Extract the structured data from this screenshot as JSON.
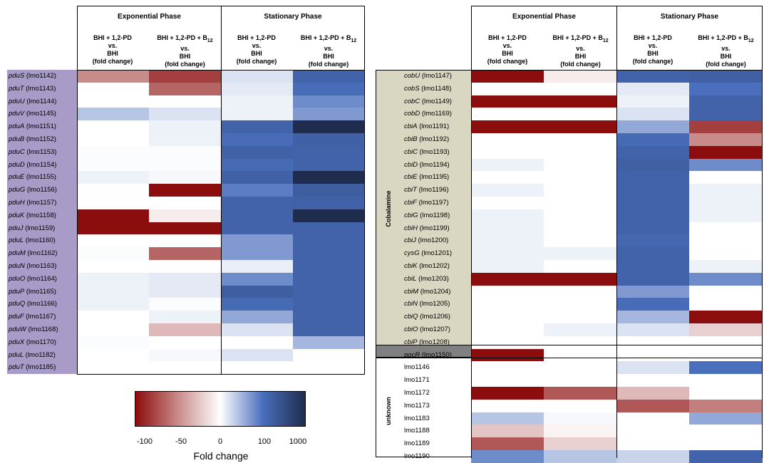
{
  "left_panel": {
    "phases": [
      "Exponential Phase",
      "Stationary Phase"
    ],
    "column_headers": [
      "BHI + 1,2-PD\nvs.\nBHI\n(fold change)",
      "BHI + 1,2-PD + B12\nvs.\nBHI\n(fold change)",
      "BHI + 1,2-PD\nvs.\nBHI\n(fold change)",
      "BHI + 1,2-PD + B12\nvs.\nBHI\n(fold change)"
    ],
    "label_color": "#a99bc7",
    "rows": [
      {
        "gene": "pduS",
        "locus": "(lmo1142)"
      },
      {
        "gene": "pduT",
        "locus": "(lmo1143)"
      },
      {
        "gene": "pduU",
        "locus": "(lmo1144)"
      },
      {
        "gene": "pduV",
        "locus": "(lmo1145)"
      },
      {
        "gene": "pduA",
        "locus": "(lmo1151)"
      },
      {
        "gene": "pduB",
        "locus": "(lmo1152)"
      },
      {
        "gene": "pduC",
        "locus": "(lmo1153)"
      },
      {
        "gene": "pduD",
        "locus": "(lmo1154)"
      },
      {
        "gene": "pduE",
        "locus": "(lmo1155)"
      },
      {
        "gene": "pduG",
        "locus": "(lmo1156)"
      },
      {
        "gene": "pduH",
        "locus": "(lmo1157)"
      },
      {
        "gene": "pduK",
        "locus": "(lmo1158)"
      },
      {
        "gene": "pduJ",
        "locus": "(lmo1159)"
      },
      {
        "gene": "pduL",
        "locus": "(lmo1160)"
      },
      {
        "gene": "pduM",
        "locus": "(lmo1162)"
      },
      {
        "gene": "pduN",
        "locus": "(lmo1163)"
      },
      {
        "gene": "pduO",
        "locus": "(lmo1164)"
      },
      {
        "gene": "pduP",
        "locus": "(lmo1165)"
      },
      {
        "gene": "pduQ",
        "locus": "(lmo1166)"
      },
      {
        "gene": "pduF",
        "locus": "(lmo1167)"
      },
      {
        "gene": "pduW",
        "locus": "(lmo1168)"
      },
      {
        "gene": "pduX",
        "locus": "(lmo1170)"
      },
      {
        "gene": "pduL",
        "locus": "(lmo1182)"
      },
      {
        "gene": "pduT",
        "locus": "(lmo1185)"
      }
    ]
  },
  "right_panel": {
    "phases": [
      "Exponential Phase",
      "Stationary Phase"
    ],
    "column_headers": [
      "BHI + 1,2-PD\nvs.\nBHI\n(fold change)",
      "BHI + 1,2-PD + B12\nvs.\nBHI\n(fold change)",
      "BHI + 1,2-PD\nvs.\nBHI\n(fold change)",
      "BHI + 1,2-PD + B12\nvs.\nBHI\n(fold change)"
    ],
    "groups": [
      {
        "label": "Cobalamine",
        "color": "#d9d7c1"
      },
      {
        "label": "",
        "color": "#808080"
      },
      {
        "label": "unknown",
        "color": "#ffffff"
      }
    ],
    "rows": [
      {
        "gene": "cobU",
        "locus": "(lmo1147)",
        "group": 0
      },
      {
        "gene": "cobS",
        "locus": "(lmo1148)",
        "group": 0
      },
      {
        "gene": "cobC",
        "locus": "(lmo1149)",
        "group": 0
      },
      {
        "gene": "cobD",
        "locus": "(lmo1169)",
        "group": 0
      },
      {
        "gene": "cbiA",
        "locus": "(lmo1191)",
        "group": 0
      },
      {
        "gene": "cbiB",
        "locus": "(lmo1192)",
        "group": 0
      },
      {
        "gene": "cbiC",
        "locus": "(lmo1193)",
        "group": 0
      },
      {
        "gene": "cbiD",
        "locus": "(lmo1194)",
        "group": 0
      },
      {
        "gene": "cbiE",
        "locus": "(lmo1195)",
        "group": 0
      },
      {
        "gene": "cbiT",
        "locus": "(lmo1196)",
        "group": 0
      },
      {
        "gene": "cbiF",
        "locus": "(lmo1197)",
        "group": 0
      },
      {
        "gene": "cbiG",
        "locus": "(lmo1198)",
        "group": 0
      },
      {
        "gene": "cbiH",
        "locus": "(lmo1199)",
        "group": 0
      },
      {
        "gene": "cbiJ",
        "locus": "(lmo1200)",
        "group": 0
      },
      {
        "gene": "cysG",
        "locus": "(lmo1201)",
        "group": 0
      },
      {
        "gene": "cbiK",
        "locus": "(lmo1202)",
        "group": 0
      },
      {
        "gene": "cbiL",
        "locus": "(lmo1203)",
        "group": 0
      },
      {
        "gene": "cbiM",
        "locus": "(lmo1204)",
        "group": 0
      },
      {
        "gene": "cbiN",
        "locus": "(lmo1205)",
        "group": 0
      },
      {
        "gene": "cbiQ",
        "locus": "(lmo1206)",
        "group": 0
      },
      {
        "gene": "cbiO",
        "locus": "(lmo1207)",
        "group": 0
      },
      {
        "gene": "cbiP",
        "locus": "(lmo1208)",
        "group": 0
      },
      {
        "gene": "pocR",
        "locus": "(lmo1150)",
        "group": 1
      },
      {
        "gene": "",
        "locus": "lmo1146",
        "group": 2
      },
      {
        "gene": "",
        "locus": "lmo1171",
        "group": 2
      },
      {
        "gene": "",
        "locus": "lmo1172",
        "group": 2
      },
      {
        "gene": "",
        "locus": "lmo1173",
        "group": 2
      },
      {
        "gene": "",
        "locus": "lmo1183",
        "group": 2
      },
      {
        "gene": "",
        "locus": "lmo1188",
        "group": 2
      },
      {
        "gene": "",
        "locus": "lmo1189",
        "group": 2
      },
      {
        "gene": "",
        "locus": "lmo1190",
        "group": 2
      }
    ]
  },
  "colorbar": {
    "tick_labels": [
      "-100",
      "-50",
      "0",
      "100",
      "1000"
    ],
    "label": "Fold change",
    "colors": [
      "#8b0d0d",
      "#c98a8a",
      "#ffffff",
      "#4a6fbd",
      "#1f2c4d"
    ]
  },
  "chart_data": {
    "type": "heatmap",
    "color_scale": {
      "ticks": [
        -100,
        -50,
        0,
        100,
        1000
      ],
      "label": "Fold change"
    },
    "columns": [
      "Exponential Phase: BHI + 1,2-PD vs. BHI",
      "Exponential Phase: BHI + 1,2-PD + B12 vs. BHI",
      "Stationary Phase: BHI + 1,2-PD vs. BHI",
      "Stationary Phase: BHI + 1,2-PD + B12 vs. BHI"
    ],
    "left_values": [
      [
        -50,
        -80,
        20,
        150
      ],
      [
        0,
        -65,
        15,
        110
      ],
      [
        0,
        0,
        10,
        80
      ],
      [
        40,
        20,
        10,
        70
      ],
      [
        0,
        10,
        150,
        1000
      ],
      [
        0,
        10,
        110,
        160
      ],
      [
        2,
        2,
        160,
        150
      ],
      [
        2,
        2,
        120,
        150
      ],
      [
        10,
        5,
        160,
        1000
      ],
      [
        0,
        -100,
        90,
        180
      ],
      [
        0,
        0,
        150,
        160
      ],
      [
        -100,
        -8,
        150,
        1000
      ],
      [
        -100,
        -100,
        150,
        150
      ],
      [
        0,
        0,
        70,
        150
      ],
      [
        3,
        -65,
        70,
        150
      ],
      [
        0,
        0,
        12,
        150
      ],
      [
        10,
        15,
        80,
        150
      ],
      [
        10,
        15,
        180,
        150
      ],
      [
        10,
        2,
        120,
        150
      ],
      [
        0,
        10,
        60,
        150
      ],
      [
        0,
        -30,
        20,
        150
      ],
      [
        2,
        0,
        0,
        50
      ],
      [
        0,
        5,
        20,
        0
      ],
      [
        0,
        0,
        0,
        0
      ]
    ],
    "right_values": [
      [
        -100,
        -8,
        150,
        170
      ],
      [
        0,
        0,
        15,
        100
      ],
      [
        -100,
        -100,
        10,
        150
      ],
      [
        0,
        0,
        20,
        150
      ],
      [
        -100,
        -100,
        60,
        -80
      ],
      [
        0,
        0,
        120,
        -50
      ],
      [
        0,
        0,
        150,
        -100
      ],
      [
        10,
        0,
        170,
        80
      ],
      [
        0,
        0,
        150,
        0
      ],
      [
        10,
        0,
        150,
        10
      ],
      [
        0,
        0,
        150,
        10
      ],
      [
        10,
        0,
        150,
        10
      ],
      [
        10,
        0,
        150,
        0
      ],
      [
        10,
        0,
        130,
        0
      ],
      [
        10,
        10,
        150,
        0
      ],
      [
        10,
        0,
        150,
        10
      ],
      [
        -100,
        -100,
        150,
        80
      ],
      [
        0,
        0,
        70,
        0
      ],
      [
        0,
        0,
        110,
        0
      ],
      [
        0,
        0,
        50,
        -100
      ],
      [
        0,
        10,
        20,
        -20
      ],
      [
        0,
        0,
        0,
        0
      ],
      [
        -100,
        0,
        0,
        0
      ],
      [
        0,
        0,
        20,
        100
      ],
      [
        0,
        0,
        0,
        0
      ],
      [
        -100,
        -70,
        -30,
        0
      ],
      [
        0,
        0,
        -70,
        -55
      ],
      [
        40,
        5,
        0,
        60
      ],
      [
        -25,
        -5,
        0,
        0
      ],
      [
        -70,
        -20,
        0,
        0
      ],
      [
        80,
        40,
        30,
        150
      ]
    ]
  }
}
